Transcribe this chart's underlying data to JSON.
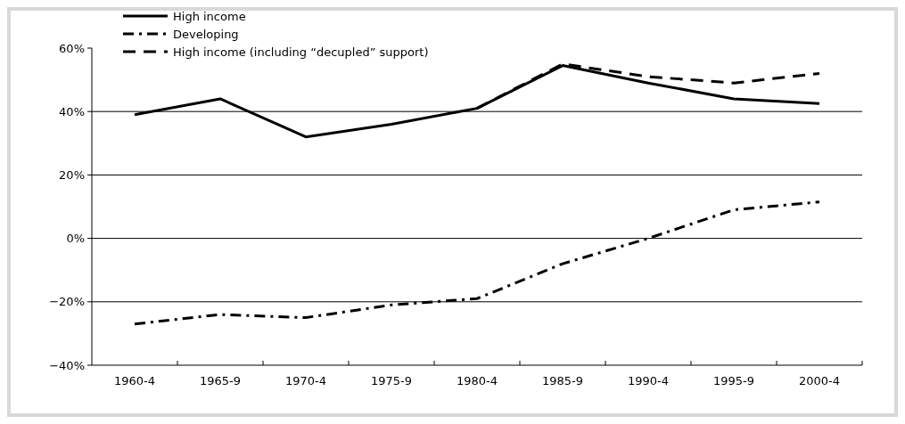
{
  "chart_data": {
    "type": "line",
    "categories": [
      "1960-4",
      "1965-9",
      "1970-4",
      "1975-9",
      "1980-4",
      "1985-9",
      "1990-4",
      "1995-9",
      "2000-4"
    ],
    "series": [
      {
        "name": "High income",
        "color": "#000000",
        "line_style": "solid",
        "values": [
          39,
          44,
          32,
          36,
          41,
          54.5,
          49,
          44,
          42.5
        ]
      },
      {
        "name": "Developing",
        "color": "#000000",
        "line_style": "dashdot",
        "values": [
          -27,
          -24,
          -25,
          -21,
          -19,
          -8,
          0,
          9,
          11.5
        ]
      },
      {
        "name": "High income (including “decupled” support)",
        "color": "#000000",
        "line_style": "dashed",
        "values": [
          null,
          null,
          null,
          null,
          41,
          55,
          51,
          49,
          52
        ]
      }
    ],
    "ylim": [
      -40,
      60
    ],
    "yticks": [
      {
        "value": -40,
        "label": "−40%"
      },
      {
        "value": -20,
        "label": "−20%"
      },
      {
        "value": 0,
        "label": "0%"
      },
      {
        "value": 20,
        "label": "20%"
      },
      {
        "value": 40,
        "label": "40%"
      },
      {
        "value": 60,
        "label": "60%"
      }
    ],
    "grid": "y",
    "legend": "top left",
    "marker": "none"
  }
}
